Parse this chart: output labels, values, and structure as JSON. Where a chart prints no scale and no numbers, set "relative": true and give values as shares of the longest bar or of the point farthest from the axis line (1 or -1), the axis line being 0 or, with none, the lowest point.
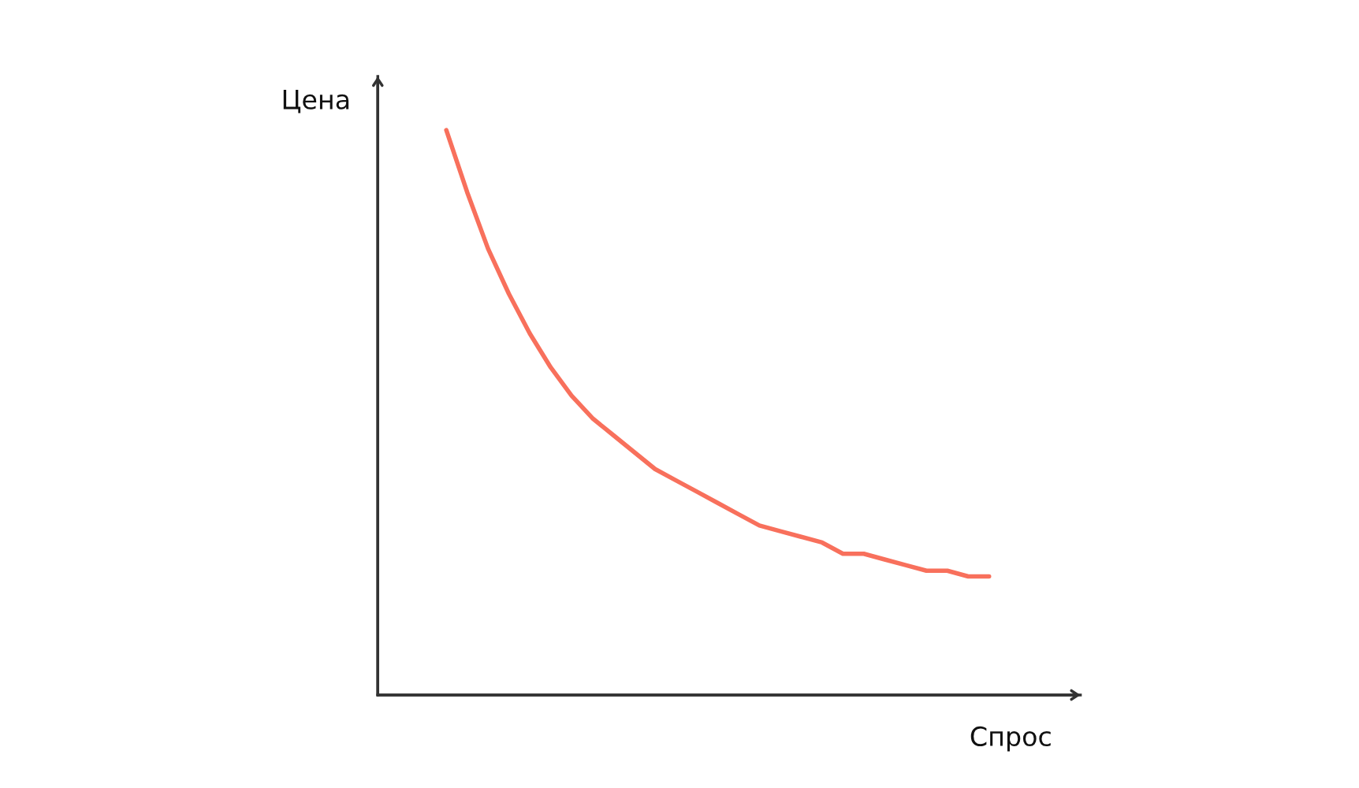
{
  "chart_data": {
    "type": "line",
    "relative": true,
    "xlabel": "Спрос",
    "ylabel": "Цена",
    "grid": false,
    "legend": false,
    "categories": [
      null,
      null,
      null,
      null,
      null,
      null,
      null,
      null,
      null,
      null,
      null,
      null,
      null,
      null,
      null,
      null,
      null,
      null,
      null,
      null,
      null,
      null,
      null,
      null,
      null,
      null,
      null
    ],
    "series": [
      {
        "color": "#f8705c",
        "values": [
          1.0,
          0.89,
          0.79,
          0.71,
          0.64,
          0.58,
          0.53,
          0.49,
          0.46,
          0.43,
          0.4,
          0.38,
          0.36,
          0.34,
          0.32,
          0.3,
          0.29,
          0.28,
          0.27,
          0.25,
          0.25,
          0.24,
          0.23,
          0.22,
          0.22,
          0.21,
          0.21
        ]
      }
    ]
  }
}
